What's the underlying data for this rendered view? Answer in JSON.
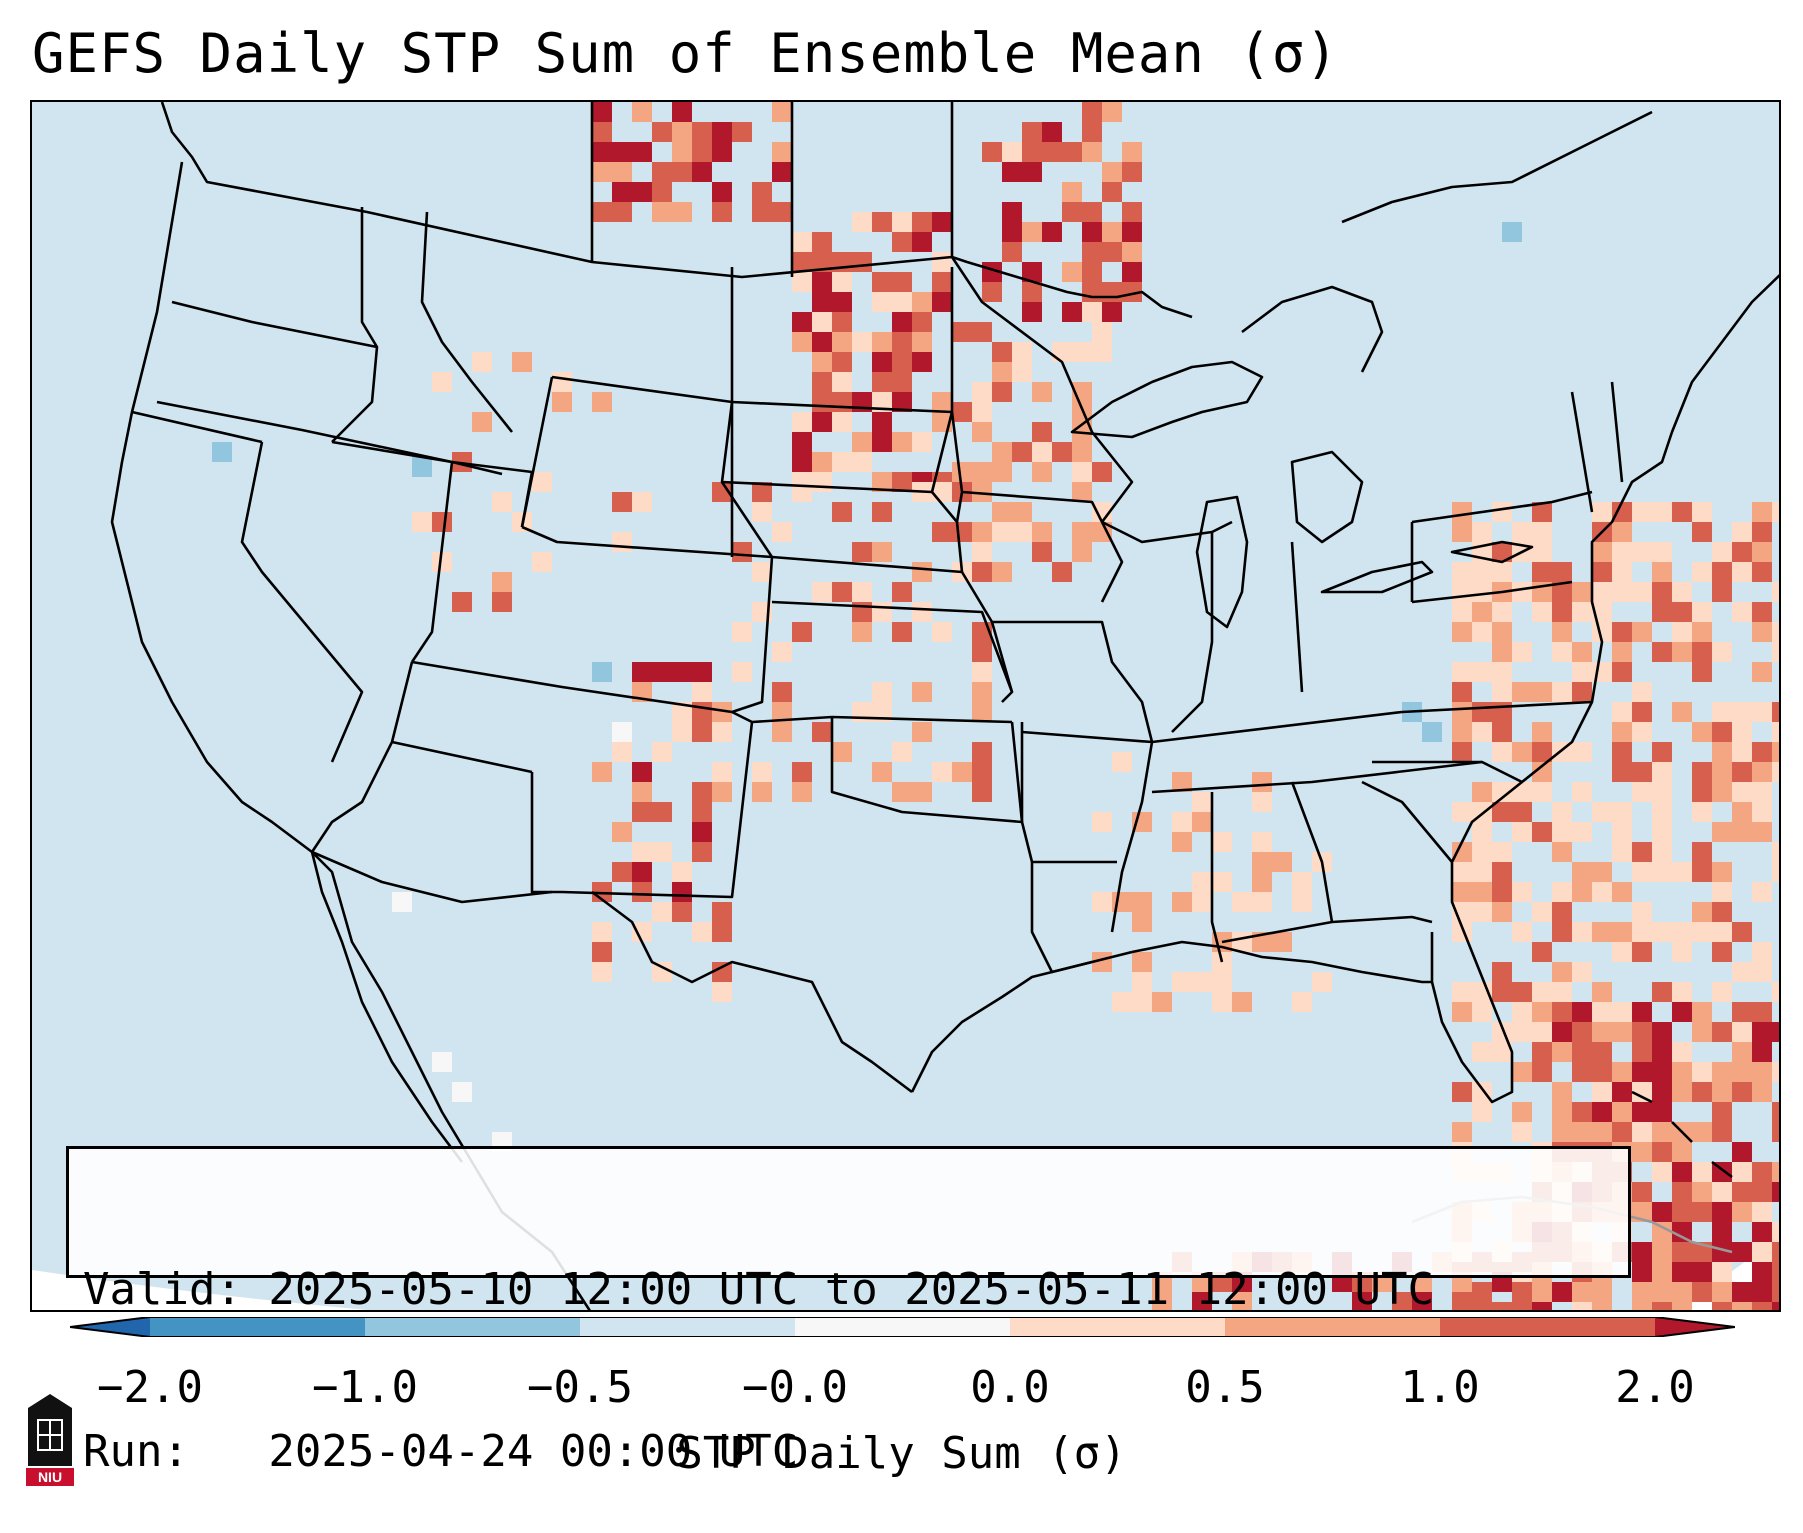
{
  "title": "GEFS Daily STP Sum of Ensemble Mean (σ)",
  "info": {
    "valid_line": "Valid: 2025-05-10 12:00 UTC to 2025-05-11 12:00 UTC",
    "run_line": "Run:   2025-04-24 00:00 UTC"
  },
  "colorbar": {
    "label": "STP Daily Sum (σ)",
    "ticks": [
      "−2.0",
      "−1.0",
      "−0.5",
      "−0.0",
      "0.0",
      "0.5",
      "1.0",
      "2.0"
    ],
    "bin_colors": [
      "#4393c3",
      "#92c5de",
      "#d1e5f0",
      "#f7f7f7",
      "#fddbc7",
      "#f4a582",
      "#d6604d"
    ],
    "under_color": "#2166ac",
    "over_color": "#b2182b"
  },
  "logo": {
    "text": "NIU",
    "name": "niu-logo"
  },
  "colors": {
    "background_field": "#d1e5f0",
    "land_outline": "#000000"
  }
}
